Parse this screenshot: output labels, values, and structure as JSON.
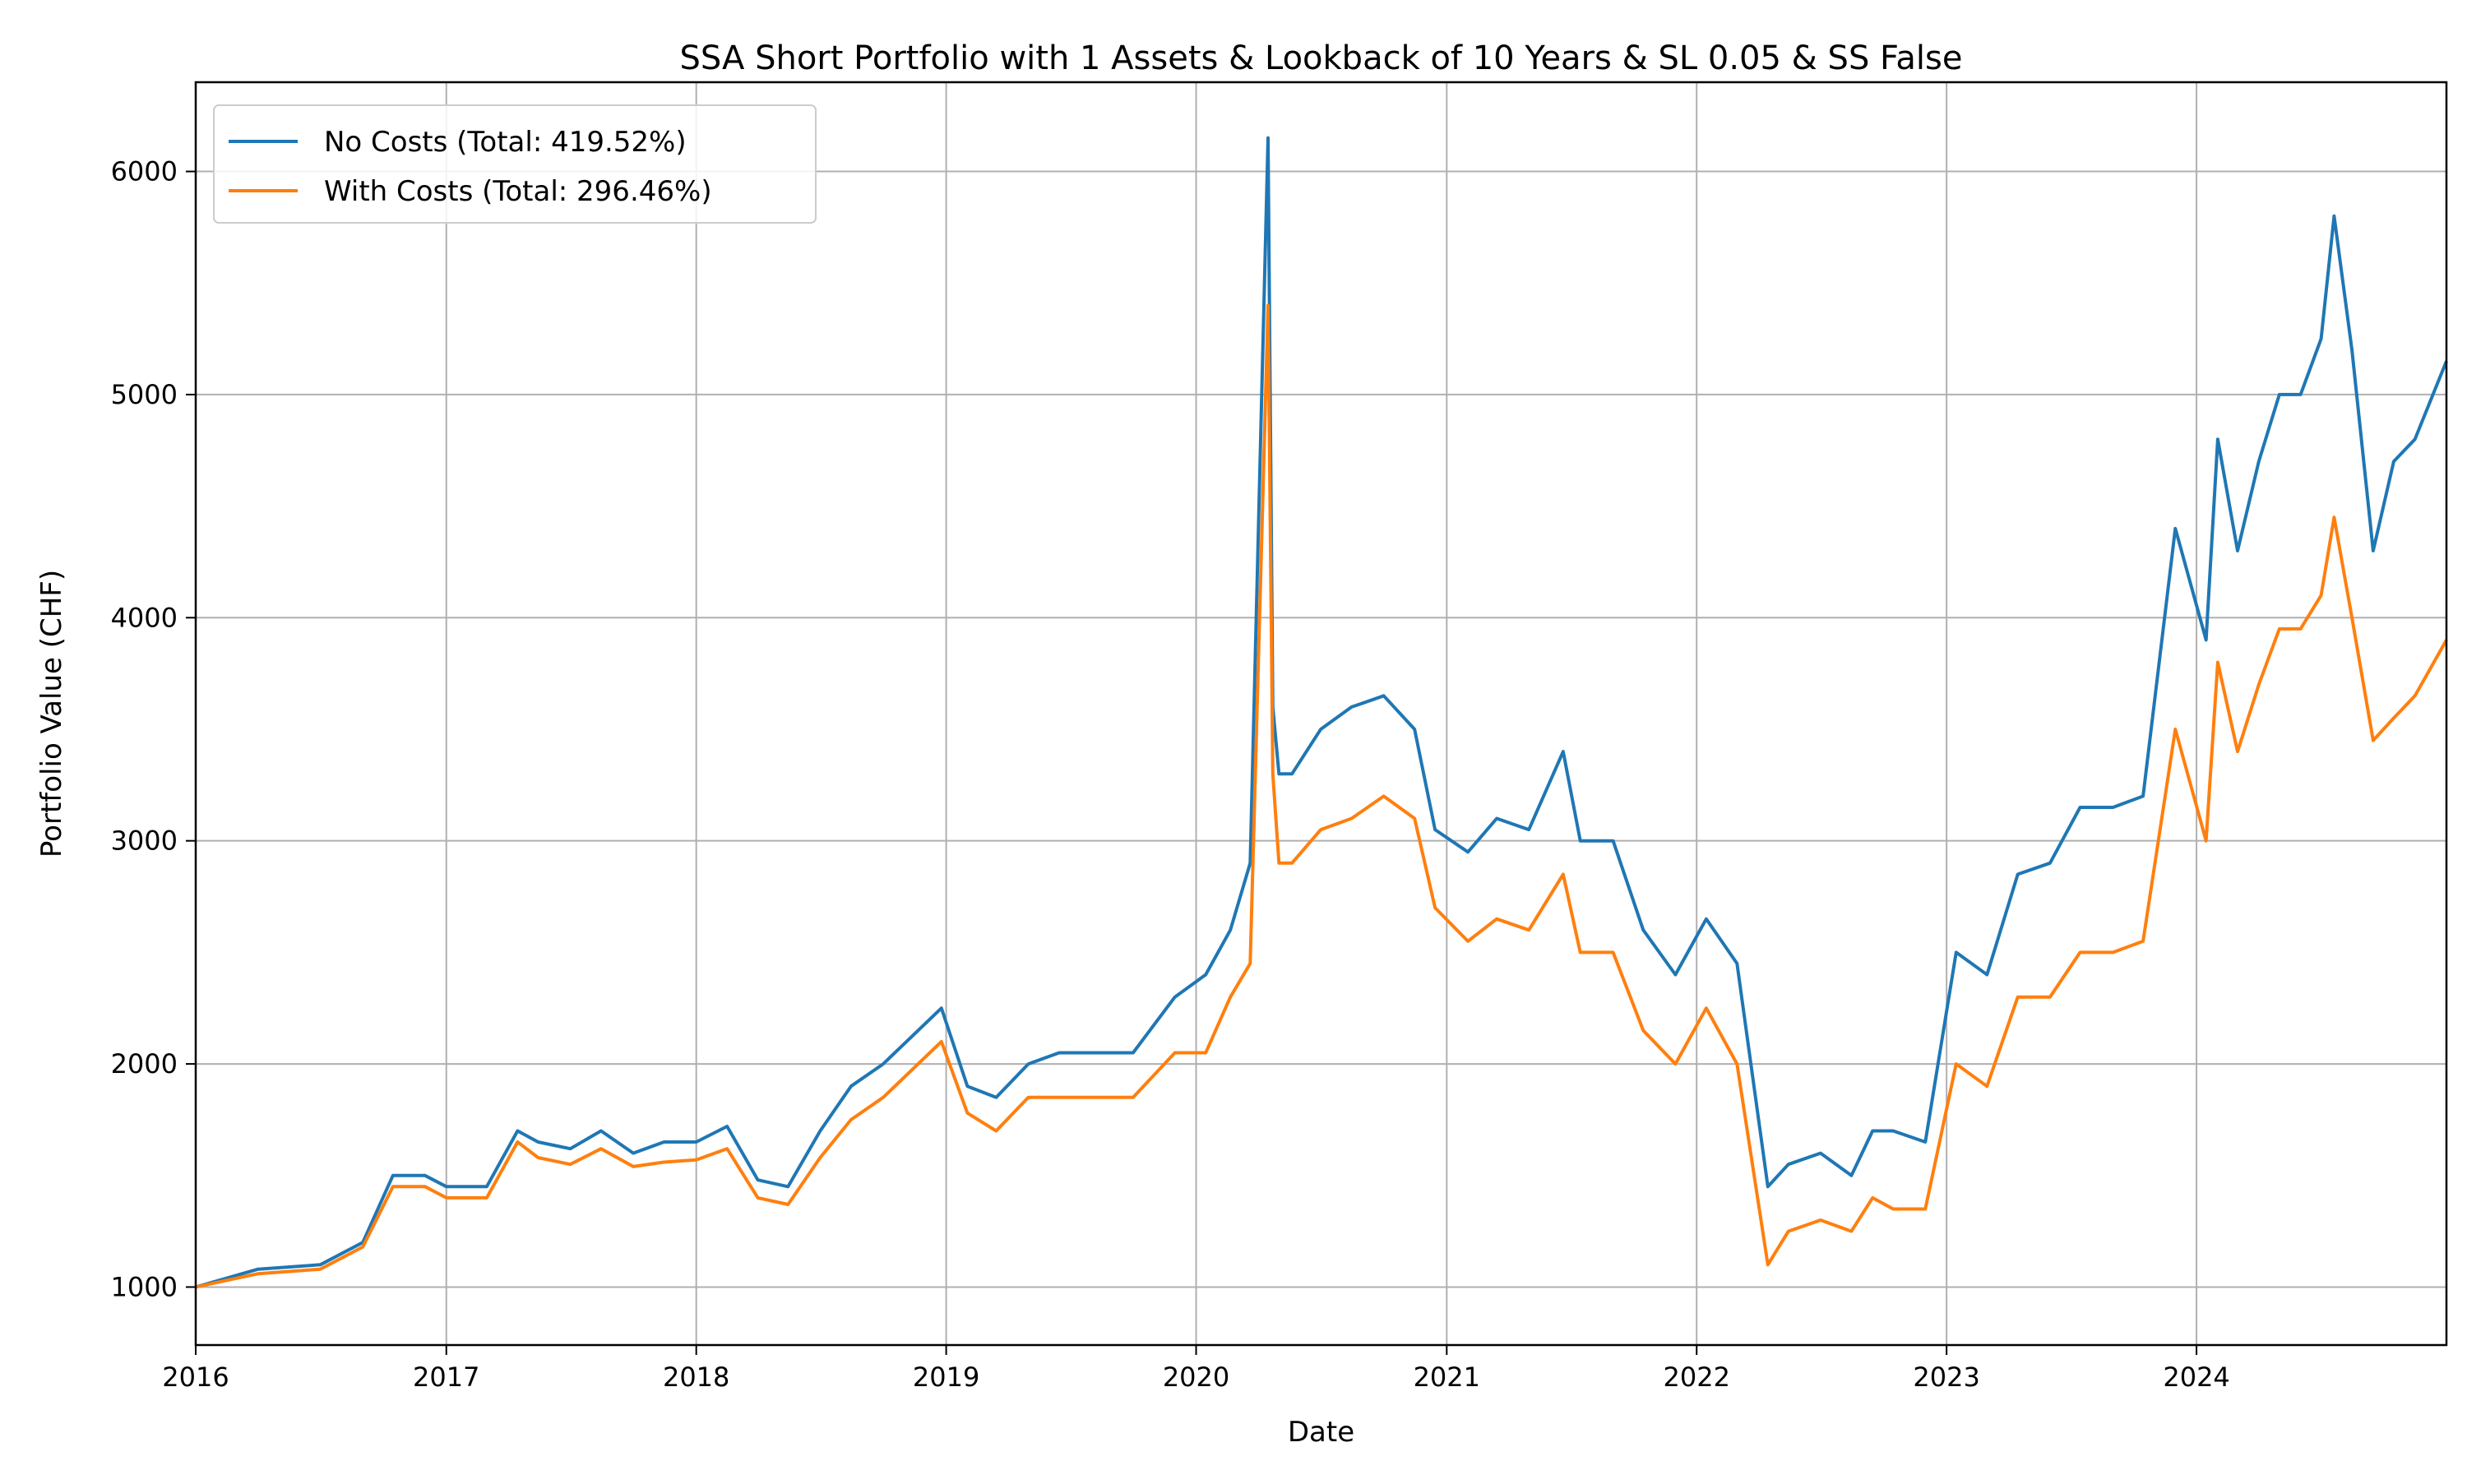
{
  "chart_data": {
    "type": "line",
    "title": "SSA Short Portfolio with 1 Assets & Lookback of 10 Years & SL 0.05 & SS False",
    "xlabel": "Date",
    "ylabel": "Portfolio Value (CHF)",
    "x_ticks": [
      "2016",
      "2017",
      "2018",
      "2019",
      "2020",
      "2021",
      "2022",
      "2023",
      "2024"
    ],
    "y_ticks": [
      1000,
      2000,
      3000,
      4000,
      5000,
      6000
    ],
    "xlim": [
      "2016-01-01",
      "2024-12-31"
    ],
    "ylim": [
      740,
      6400
    ],
    "grid": true,
    "legend_position": "top-left",
    "colors": {
      "no_costs": "#1f77b4",
      "with_costs": "#ff7f0e",
      "grid": "#b0b0b0"
    },
    "x_dates": [
      "2016-01-01",
      "2016-04-01",
      "2016-07-01",
      "2016-09-01",
      "2016-10-15",
      "2016-12-01",
      "2017-01-01",
      "2017-03-01",
      "2017-04-15",
      "2017-05-15",
      "2017-07-01",
      "2017-08-15",
      "2017-10-01",
      "2017-11-15",
      "2018-01-01",
      "2018-02-15",
      "2018-04-01",
      "2018-05-15",
      "2018-07-01",
      "2018-08-15",
      "2018-10-01",
      "2018-12-25",
      "2019-02-01",
      "2019-03-15",
      "2019-05-01",
      "2019-06-15",
      "2019-08-01",
      "2019-10-01",
      "2019-12-01",
      "2020-01-15",
      "2020-02-20",
      "2020-03-20",
      "2020-04-15",
      "2020-04-22",
      "2020-05-01",
      "2020-05-20",
      "2020-07-01",
      "2020-08-15",
      "2020-10-01",
      "2020-11-15",
      "2020-12-15",
      "2021-02-01",
      "2021-03-15",
      "2021-05-01",
      "2021-06-20",
      "2021-07-15",
      "2021-09-01",
      "2021-10-15",
      "2021-12-01",
      "2022-01-15",
      "2022-03-01",
      "2022-04-15",
      "2022-05-15",
      "2022-07-01",
      "2022-08-15",
      "2022-09-15",
      "2022-10-15",
      "2022-12-01",
      "2023-01-15",
      "2023-03-01",
      "2023-04-15",
      "2023-06-01",
      "2023-07-15",
      "2023-09-01",
      "2023-10-15",
      "2023-12-01",
      "2024-01-15",
      "2024-02-01",
      "2024-03-01",
      "2024-04-01",
      "2024-05-01",
      "2024-06-01",
      "2024-07-01",
      "2024-07-20",
      "2024-08-15",
      "2024-09-15",
      "2024-10-15",
      "2024-11-15",
      "2024-12-31"
    ],
    "series": [
      {
        "name": "No Costs (Total: 419.52%)",
        "values": [
          1000,
          1080,
          1100,
          1200,
          1500,
          1500,
          1450,
          1450,
          1700,
          1650,
          1620,
          1700,
          1600,
          1650,
          1650,
          1720,
          1480,
          1450,
          1700,
          1900,
          2000,
          2250,
          1900,
          1850,
          2000,
          2050,
          2050,
          2050,
          2300,
          2400,
          2600,
          2900,
          6150,
          3600,
          3300,
          3300,
          3500,
          3600,
          3650,
          3500,
          3050,
          2950,
          3100,
          3050,
          3400,
          3000,
          3000,
          2600,
          2400,
          2650,
          2450,
          1450,
          1550,
          1600,
          1500,
          1700,
          1700,
          1650,
          2500,
          2400,
          2850,
          2900,
          3150,
          3150,
          3200,
          4400,
          3900,
          4800,
          4300,
          4700,
          5000,
          5000,
          5250,
          5800,
          5200,
          4300,
          4700,
          4800,
          5150
        ]
      },
      {
        "name": "With Costs (Total: 296.46%)",
        "values": [
          1000,
          1060,
          1080,
          1180,
          1450,
          1450,
          1400,
          1400,
          1650,
          1580,
          1550,
          1620,
          1540,
          1560,
          1570,
          1620,
          1400,
          1370,
          1580,
          1750,
          1850,
          2100,
          1780,
          1700,
          1850,
          1850,
          1850,
          1850,
          2050,
          2050,
          2300,
          2450,
          5400,
          3300,
          2900,
          2900,
          3050,
          3100,
          3200,
          3100,
          2700,
          2550,
          2650,
          2600,
          2850,
          2500,
          2500,
          2150,
          2000,
          2250,
          2000,
          1100,
          1250,
          1300,
          1250,
          1400,
          1350,
          1350,
          2000,
          1900,
          2300,
          2300,
          2500,
          2500,
          2550,
          3500,
          3000,
          3800,
          3400,
          3700,
          3950,
          3950,
          4100,
          4450,
          4000,
          3450,
          3550,
          3650,
          3900
        ]
      }
    ]
  }
}
